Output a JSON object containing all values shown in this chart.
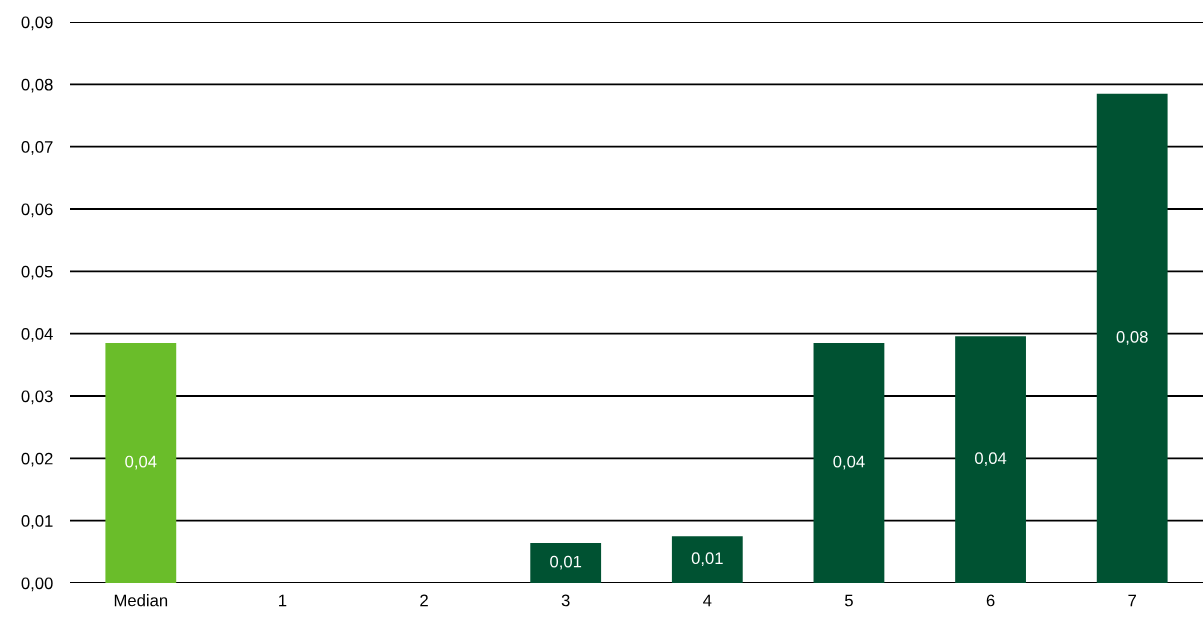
{
  "chart_data": {
    "type": "bar",
    "categories": [
      "Median",
      "1",
      "2",
      "3",
      "4",
      "5",
      "6",
      "7"
    ],
    "values": [
      0.0385,
      0,
      0,
      0.0064,
      0.0075,
      0.0385,
      0.0396,
      0.0785
    ],
    "colors": [
      "#6abd2a",
      "#005232",
      "#005232",
      "#005232",
      "#005232",
      "#005232",
      "#005232",
      "#005232"
    ],
    "value_labels": [
      "0,04",
      null,
      null,
      "0,01",
      "0,01",
      "0,04",
      "0,04",
      "0,08"
    ],
    "ylim": [
      0,
      0.09
    ],
    "yticks": [
      {
        "value": 0,
        "label": "0,00"
      },
      {
        "value": 0.01,
        "label": "0,01"
      },
      {
        "value": 0.02,
        "label": "0,02"
      },
      {
        "value": 0.03,
        "label": "0,03"
      },
      {
        "value": 0.04,
        "label": "0,04"
      },
      {
        "value": 0.05,
        "label": "0,05"
      },
      {
        "value": 0.06,
        "label": "0,06"
      },
      {
        "value": 0.07,
        "label": "0,07"
      },
      {
        "value": 0.08,
        "label": "0,08"
      },
      {
        "value": 0.09,
        "label": "0,09"
      }
    ],
    "grid": "y",
    "legend": false
  }
}
